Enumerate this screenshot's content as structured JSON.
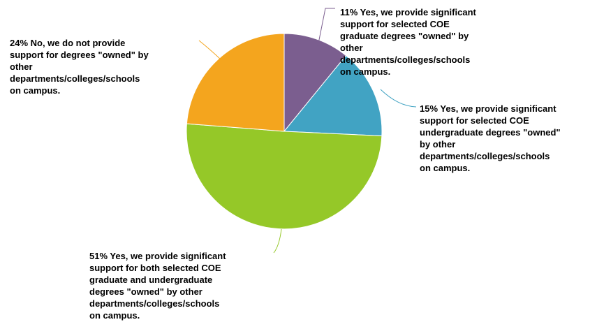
{
  "chart_data": {
    "type": "pie",
    "start_angle_deg": 0,
    "direction": "clockwise",
    "slices": [
      {
        "pct_label": "11%",
        "value": 11,
        "color": "#7B5E8F",
        "label_lines": [
          "11% Yes, we provide significant",
          "support for selected COE",
          "graduate degrees \"owned\" by",
          "other",
          "departments/colleges/schools",
          "on campus."
        ]
      },
      {
        "pct_label": "15%",
        "value": 15,
        "color": "#41A3C3",
        "label_lines": [
          "15% Yes, we provide significant",
          "support for selected COE",
          "undergraduate degrees \"owned\"",
          "by other",
          "departments/colleges/schools",
          "on campus."
        ]
      },
      {
        "pct_label": "51%",
        "value": 51,
        "color": "#95C828",
        "label_lines": [
          "51% Yes, we provide significant",
          "support for both selected COE",
          "graduate and undergraduate",
          "degrees \"owned\" by other",
          "departments/colleges/schools",
          "on campus."
        ]
      },
      {
        "pct_label": "24%",
        "value": 24,
        "color": "#F4A51E",
        "label_lines": [
          "24% No, we do not provide",
          "support for degrees \"owned\" by",
          "other",
          "departments/colleges/schools",
          "on campus."
        ]
      }
    ]
  }
}
